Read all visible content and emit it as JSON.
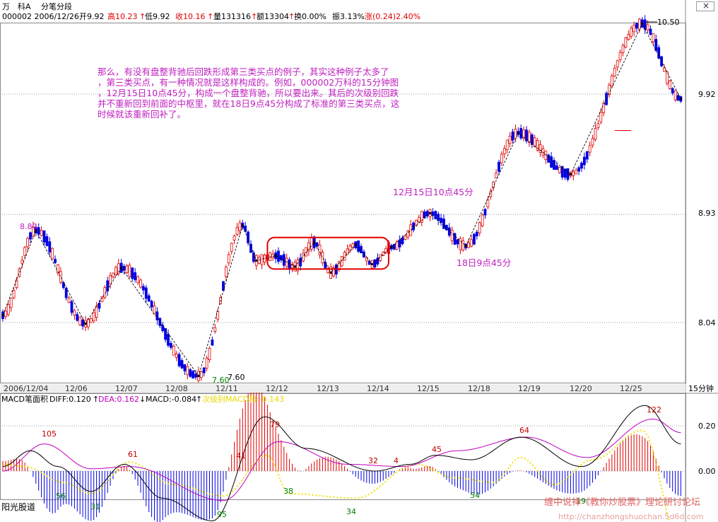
{
  "header": {
    "stock_name": "万　科A",
    "chart_mode": "分笔分段",
    "code_date": "000002 2006/12/26",
    "open": "开9.92",
    "high": "高10.23",
    "low": "低9.92",
    "close": "收10.16",
    "volume": "量131316",
    "amount": "额13304",
    "turnover": "换0.00%",
    "amplitude": "振3.13%",
    "change": "涨(0.24)2.40%"
  },
  "annotation": {
    "lines": [
      "那么，有没有盘整背驰后回跌形成第三类买点的例子，其实这种例子太多了",
      "，第三类买点，有一种情况就是这样构成的。例如，000002万科的15分钟图",
      "，12月15日10点45分，构成一个盘整背驰，所以要出来。其后的次级别回跌",
      "并不重新回到前面的中枢里，就在18日9点45分构成了标准的第三类买点，这",
      "时候就该重新回补了。"
    ],
    "label_1215": "12月15日10点45分",
    "label_18": "18日9点45分",
    "price_high_label": "10.50",
    "price_low_label": "7.60",
    "price_low_label2": "7.60",
    "price_left_label": "8.80"
  },
  "price_axis": {
    "ticks": [
      "9.92",
      "8.93",
      "8.04"
    ]
  },
  "date_axis": {
    "labels": [
      "2006/12/04",
      "12/06",
      "12/07",
      "12/08",
      "12/11",
      "12/12",
      "12/13",
      "12/14",
      "12/15",
      "12/18",
      "12/19",
      "12/20",
      "12/25"
    ],
    "period": "15分钟"
  },
  "macd_header": {
    "title": "MACD笔面积",
    "diff": "DIFF:0.120",
    "dea": "DEA:0.162",
    "macd": "MACD:-0.084",
    "sub": "次级别MACD和:-0.143"
  },
  "macd_axis": {
    "ticks": [
      "0.20",
      "0.00"
    ]
  },
  "macd_labels": {
    "red": [
      "105",
      "61",
      "41",
      "79",
      "32",
      "4",
      "45",
      "64",
      "122"
    ],
    "green": [
      "56",
      "31",
      "95",
      "38",
      "34",
      "54",
      "19"
    ]
  },
  "footer": {
    "left": "阳光股道",
    "right": "缠中说禅《教你炒股票》理论研讨论坛",
    "url": "http://chanzhongshuochan.5d6d.com"
  },
  "window": {
    "close_label": "×"
  },
  "colors": {
    "up": "#e00000",
    "down": "#0000e0",
    "annotation": "#c020c0",
    "diff": "#000000",
    "dea": "#c000c0",
    "sub_macd": "#f0e000",
    "label_red": "#c00000",
    "label_green": "#008000"
  },
  "chart_data": [
    {
      "type": "candlestick",
      "title": "万　科A 15分钟",
      "ylim": [
        7.45,
        10.6
      ],
      "yticks": [
        8.04,
        8.93,
        9.92
      ],
      "zigzag_pivots": [
        {
          "bar": 0,
          "price": 8.1
        },
        {
          "bar": 12,
          "price": 8.8
        },
        {
          "bar": 30,
          "price": 8.03
        },
        {
          "bar": 43,
          "price": 8.49
        },
        {
          "bar": 71,
          "price": 7.6
        },
        {
          "bar": 87,
          "price": 8.84
        },
        {
          "bar": 92,
          "price": 8.55
        },
        {
          "bar": 99,
          "price": 8.59
        },
        {
          "bar": 106,
          "price": 8.5
        },
        {
          "bar": 113,
          "price": 8.7
        },
        {
          "bar": 119,
          "price": 8.45
        },
        {
          "bar": 128,
          "price": 8.68
        },
        {
          "bar": 134,
          "price": 8.52
        },
        {
          "bar": 141,
          "price": 8.66
        },
        {
          "bar": 155,
          "price": 8.94
        },
        {
          "bar": 168,
          "price": 8.67
        },
        {
          "bar": 187,
          "price": 9.6
        },
        {
          "bar": 206,
          "price": 9.26
        },
        {
          "bar": 232,
          "price": 10.5
        },
        {
          "bar": 246,
          "price": 9.88
        }
      ],
      "zhongshu_box": {
        "from_bar": 96,
        "to_bar": 140,
        "low": 8.48,
        "high": 8.74
      }
    },
    {
      "type": "bar",
      "title": "MACD笔面积",
      "ylim": [
        -0.33,
        0.3
      ],
      "yticks": [
        0.2,
        0.0
      ],
      "diff_pivots": [
        {
          "bar": 0,
          "value": 0.02
        },
        {
          "bar": 10,
          "value": 0.09
        },
        {
          "bar": 20,
          "value": 0.02
        },
        {
          "bar": 32,
          "value": -0.09
        },
        {
          "bar": 44,
          "value": 0.03
        },
        {
          "bar": 58,
          "value": -0.12
        },
        {
          "bar": 76,
          "value": -0.22
        },
        {
          "bar": 95,
          "value": 0.24
        },
        {
          "bar": 110,
          "value": 0.1
        },
        {
          "bar": 135,
          "value": 0.0
        },
        {
          "bar": 148,
          "value": 0.03
        },
        {
          "bar": 157,
          "value": 0.07
        },
        {
          "bar": 170,
          "value": 0.05
        },
        {
          "bar": 188,
          "value": 0.15
        },
        {
          "bar": 210,
          "value": 0.02
        },
        {
          "bar": 233,
          "value": 0.29
        },
        {
          "bar": 246,
          "value": 0.12
        }
      ],
      "dea_pivots": [
        {
          "bar": 0,
          "value": 0.0
        },
        {
          "bar": 15,
          "value": 0.12
        },
        {
          "bar": 32,
          "value": 0.01
        },
        {
          "bar": 46,
          "value": 0.02
        },
        {
          "bar": 80,
          "value": -0.13
        },
        {
          "bar": 100,
          "value": 0.13
        },
        {
          "bar": 125,
          "value": 0.03
        },
        {
          "bar": 145,
          "value": 0.02
        },
        {
          "bar": 165,
          "value": 0.09
        },
        {
          "bar": 190,
          "value": 0.15
        },
        {
          "bar": 212,
          "value": 0.06
        },
        {
          "bar": 236,
          "value": 0.23
        },
        {
          "bar": 246,
          "value": 0.17
        }
      ],
      "sub_macd_pivots": [
        {
          "bar": 0,
          "value": 0.03
        },
        {
          "bar": 8,
          "value": 0.02
        },
        {
          "bar": 22,
          "value": -0.05
        },
        {
          "bar": 32,
          "value": -0.1
        },
        {
          "bar": 46,
          "value": 0.04
        },
        {
          "bar": 62,
          "value": -0.06
        },
        {
          "bar": 80,
          "value": -0.11
        },
        {
          "bar": 96,
          "value": 0.07
        },
        {
          "bar": 104,
          "value": -0.1
        },
        {
          "bar": 128,
          "value": -0.12
        },
        {
          "bar": 150,
          "value": 0.03
        },
        {
          "bar": 164,
          "value": -0.03
        },
        {
          "bar": 178,
          "value": -0.05
        },
        {
          "bar": 188,
          "value": 0.06
        },
        {
          "bar": 200,
          "value": -0.06
        },
        {
          "bar": 214,
          "value": 0.05
        },
        {
          "bar": 232,
          "value": 0.18
        },
        {
          "bar": 246,
          "value": -0.33
        }
      ]
    }
  ]
}
